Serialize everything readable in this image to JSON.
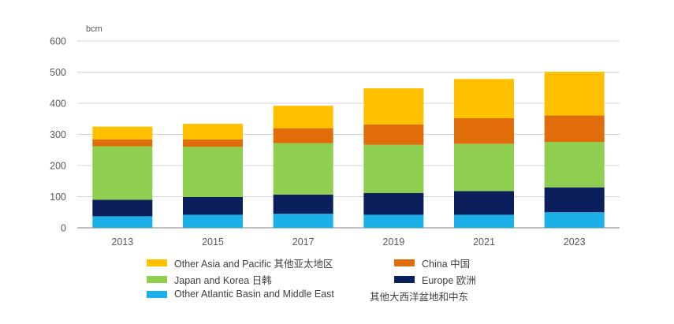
{
  "chart_data": {
    "type": "bar",
    "stacked": true,
    "unit_label": "bcm",
    "categories": [
      "2013",
      "2015",
      "2017",
      "2019",
      "2021",
      "2023"
    ],
    "ylim": [
      0,
      600
    ],
    "yticks": [
      0,
      100,
      200,
      300,
      400,
      500,
      600
    ],
    "grid": true,
    "legend_position": "bottom",
    "series": [
      {
        "name": "Other Atlantic Basin and Middle East 其他大西洋盆地和中东",
        "color": "#1cb0e8",
        "values": [
          37,
          42,
          45,
          42,
          42,
          50
        ]
      },
      {
        "name": "Europe 欧洲",
        "color": "#0b1f5c",
        "values": [
          53,
          57,
          62,
          70,
          76,
          80
        ]
      },
      {
        "name": "Japan and Korea 日韩",
        "color": "#8fce4f",
        "values": [
          172,
          161,
          165,
          155,
          152,
          146
        ]
      },
      {
        "name": "China 中国",
        "color": "#e06c0a",
        "values": [
          22,
          24,
          48,
          65,
          82,
          85
        ]
      },
      {
        "name": "Other Asia and Pacific 其他亚太地区",
        "color": "#ffc000",
        "values": [
          41,
          50,
          72,
          116,
          126,
          140
        ]
      }
    ]
  },
  "legend": {
    "items": [
      {
        "text": "Other Asia and Pacific 其他亚太地区",
        "color": "#ffc000"
      },
      {
        "text": "China 中国",
        "color": "#e06c0a"
      },
      {
        "text": "Japan and Korea 日韩",
        "color": "#8fce4f"
      },
      {
        "text": "Europe 欧洲",
        "color": "#0b1f5c"
      },
      {
        "text": "Other Atlantic Basin and Middle East",
        "color": "#1cb0e8"
      },
      {
        "text": "其他大西洋盆地和中东",
        "color": ""
      }
    ]
  }
}
